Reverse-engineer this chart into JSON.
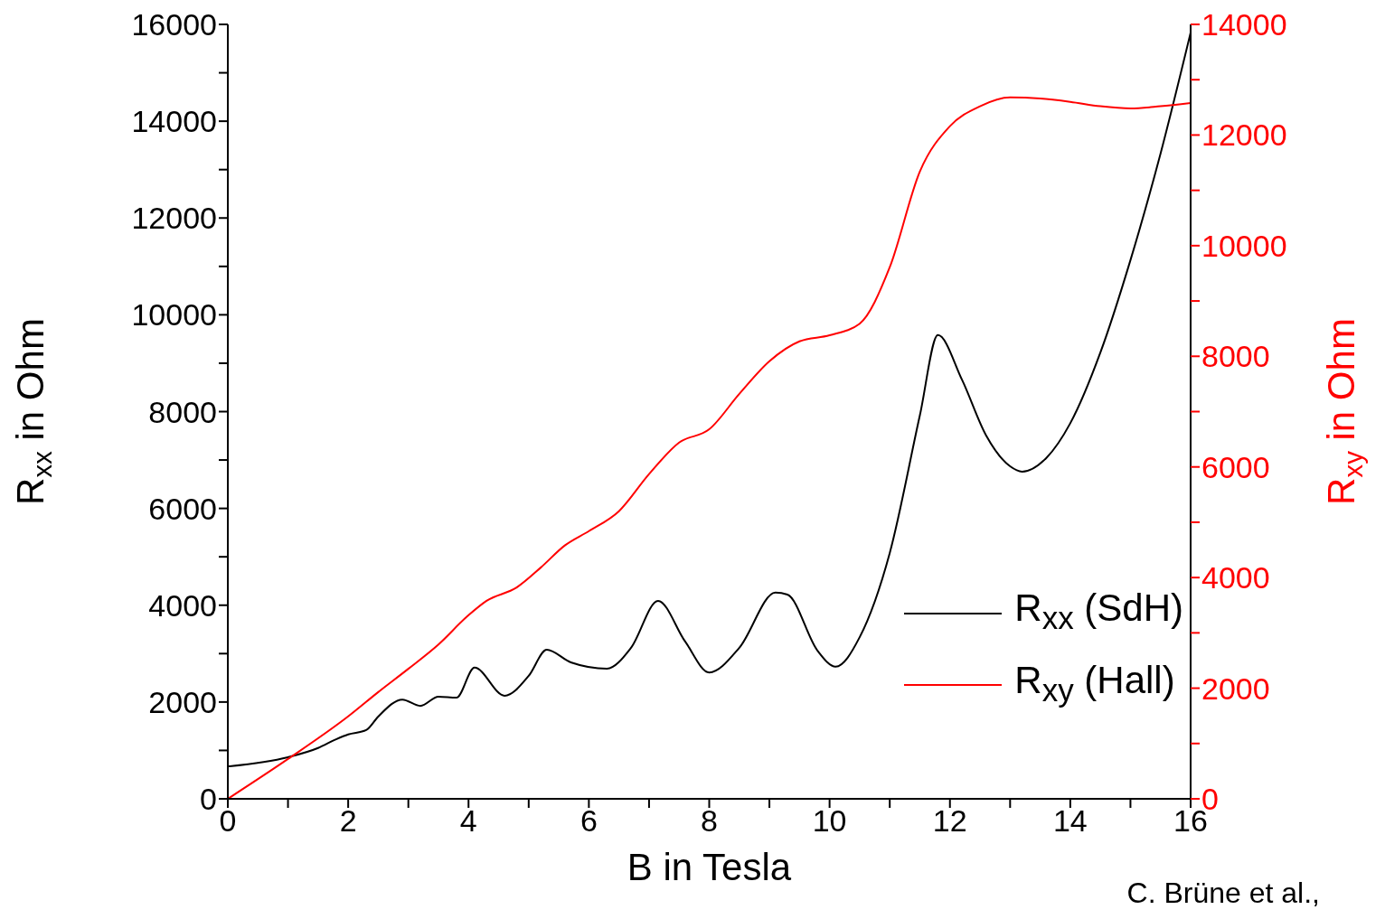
{
  "chart_data": {
    "type": "line",
    "xlabel": "B in Tesla",
    "ylabel": "R$_{xx}$ in Ohm",
    "y2label": "R$_{xy}$ in Ohm",
    "xlim": [
      0,
      16
    ],
    "xticks": [
      0,
      {
        "value": 1,
        "label": null
      },
      2,
      {
        "value": 3,
        "label": null
      },
      4,
      {
        "value": 5,
        "label": null
      },
      6,
      {
        "value": 7,
        "label": null
      },
      8,
      {
        "value": 9,
        "label": null
      },
      10,
      {
        "value": 11,
        "label": null
      },
      12,
      {
        "value": 13,
        "label": null
      },
      14,
      {
        "value": 15,
        "label": null
      },
      16
    ],
    "ylim": [
      0,
      16000
    ],
    "yticks": [
      0,
      {
        "value": 1000,
        "label": null
      },
      2000,
      {
        "value": 3000,
        "label": null
      },
      4000,
      {
        "value": 5000,
        "label": null
      },
      6000,
      {
        "value": 7000,
        "label": null
      },
      8000,
      {
        "value": 9000,
        "label": null
      },
      10000,
      {
        "value": 11000,
        "label": null
      },
      12000,
      {
        "value": 13000,
        "label": null
      },
      14000,
      {
        "value": 15000,
        "label": null
      },
      16000
    ],
    "y2lim": [
      0,
      14000
    ],
    "y2ticks": [
      0,
      {
        "value": 1000,
        "label": null
      },
      2000,
      {
        "value": 3000,
        "label": null
      },
      4000,
      {
        "value": 5000,
        "label": null
      },
      6000,
      {
        "value": 7000,
        "label": null
      },
      8000,
      {
        "value": 9000,
        "label": null
      },
      10000,
      {
        "value": 11000,
        "label": null
      },
      12000,
      {
        "value": 13000,
        "label": null
      },
      14000
    ],
    "legend": "bottom right",
    "annotations": [
      "C. Brüne et al.,"
    ],
    "series": [
      {
        "name": "R$_{xx}$ (SdH)",
        "color": "#000000",
        "x": [
          0,
          1,
          1.5,
          1.8,
          2,
          2.3,
          2.5,
          2.9,
          3.2,
          3.5,
          3.8,
          4.1,
          4.6,
          5,
          5.3,
          5.7,
          6.3,
          6.7,
          7.15,
          7.6,
          8,
          8.5,
          9.1,
          9.3,
          9.8,
          10.1,
          10.5,
          11,
          11.5,
          11.8,
          12.2,
          12.6,
          13,
          13.2,
          13.6,
          14,
          14.5,
          15,
          15.5,
          16
        ],
        "values": [
          670,
          860,
          1050,
          1230,
          1330,
          1420,
          1700,
          2050,
          1920,
          2110,
          2090,
          2710,
          2130,
          2540,
          3080,
          2820,
          2690,
          3120,
          4090,
          3250,
          2610,
          3120,
          4260,
          4220,
          3060,
          2730,
          3340,
          5080,
          7920,
          9580,
          8660,
          7510,
          6870,
          6760,
          7040,
          7760,
          9220,
          11130,
          13330,
          15830
        ]
      },
      {
        "name": "R$_{xy}$ (Hall)",
        "color": "#ff0000",
        "axis": "y2",
        "x": [
          0,
          1,
          2,
          2.5,
          3,
          3.5,
          4,
          4.3,
          4.8,
          5.2,
          5.6,
          6,
          6.5,
          7,
          7.5,
          8,
          8.5,
          9,
          9.5,
          10,
          10.5,
          11,
          11.5,
          12,
          12.5,
          13,
          13.5,
          14,
          14.5,
          15,
          15.5,
          16
        ],
        "values": [
          0,
          720,
          1490,
          1930,
          2350,
          2790,
          3320,
          3580,
          3820,
          4180,
          4580,
          4840,
          5200,
          5870,
          6440,
          6680,
          7320,
          7910,
          8270,
          8380,
          8590,
          9610,
          11340,
          12160,
          12520,
          12680,
          12660,
          12600,
          12520,
          12480,
          12520,
          12580
        ]
      }
    ]
  }
}
